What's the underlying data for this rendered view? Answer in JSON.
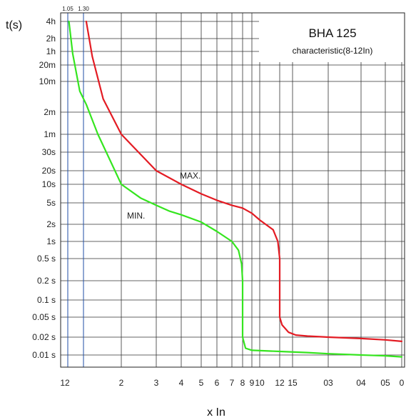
{
  "chart_data": {
    "type": "line",
    "title": "BHA 125",
    "subtitle": "characteristic(8-12In)",
    "xlabel": "x In",
    "ylabel": "t(s)",
    "grid": true,
    "x_ticks": [
      "12",
      "2",
      "3",
      "4",
      "5",
      "6",
      "7",
      "8",
      "9",
      "10",
      "12",
      "15",
      "03",
      "04",
      "05",
      "0"
    ],
    "y_ticks": [
      "4h",
      "2h",
      "1h",
      "20m",
      "10m",
      "2m",
      "1m",
      "30s",
      "20s",
      "10s",
      "5s",
      "2s",
      "1s",
      "0.5 s",
      "0.2 s",
      "0.1 s",
      "0.05 s",
      "0.02 s",
      "0.01 s"
    ],
    "top_ticks": [
      "1.05",
      "1.30"
    ],
    "series": [
      {
        "name": "MAX.",
        "color": "#e31b23",
        "points": [
          [
            1.3,
            14400
          ],
          [
            1.4,
            2400
          ],
          [
            1.6,
            240
          ],
          [
            2,
            60
          ],
          [
            3,
            20
          ],
          [
            4,
            10
          ],
          [
            5,
            7
          ],
          [
            6,
            5.5
          ],
          [
            7,
            4.5
          ],
          [
            8,
            4
          ],
          [
            9,
            3.2
          ],
          [
            10,
            2.4
          ],
          [
            11.3,
            1.6
          ],
          [
            11.8,
            1
          ],
          [
            12,
            0.5
          ],
          [
            12,
            0.05
          ],
          [
            12.5,
            0.035
          ],
          [
            14,
            0.025
          ],
          [
            16,
            0.022
          ],
          [
            20,
            0.021
          ],
          [
            30,
            0.02
          ],
          [
            40,
            0.019
          ],
          [
            50,
            0.018
          ],
          [
            60,
            0.017
          ]
        ]
      },
      {
        "name": "MIN.",
        "color": "#35e51f",
        "points": [
          [
            1.05,
            14400
          ],
          [
            1.1,
            3000
          ],
          [
            1.2,
            360
          ],
          [
            1.3,
            180
          ],
          [
            1.5,
            60
          ],
          [
            2,
            10
          ],
          [
            2.5,
            6
          ],
          [
            3,
            4.5
          ],
          [
            3.5,
            3.5
          ],
          [
            4,
            3
          ],
          [
            5,
            2.2
          ],
          [
            6,
            1.5
          ],
          [
            7,
            1
          ],
          [
            7.6,
            0.7
          ],
          [
            7.9,
            0.4
          ],
          [
            8,
            0.2
          ],
          [
            8,
            0.02
          ],
          [
            8.3,
            0.013
          ],
          [
            9,
            0.012
          ],
          [
            12,
            0.0115
          ],
          [
            20,
            0.011
          ],
          [
            30,
            0.0105
          ],
          [
            40,
            0.01
          ],
          [
            50,
            0.0097
          ],
          [
            60,
            0.0093
          ]
        ]
      }
    ]
  }
}
